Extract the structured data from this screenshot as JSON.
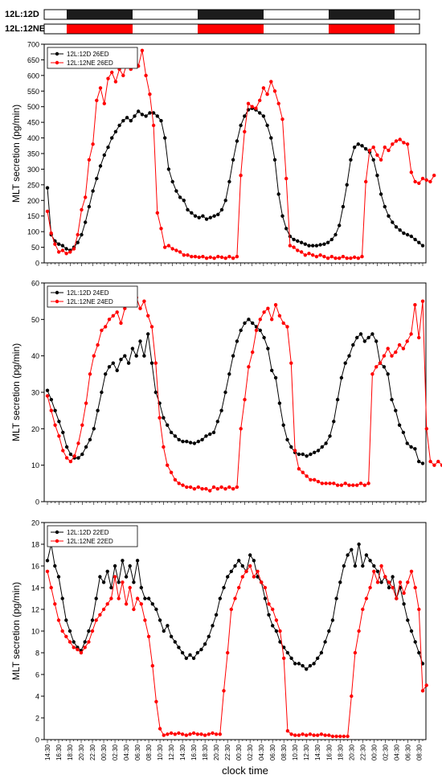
{
  "bars": [
    {
      "label": "12L:12D",
      "pattern": [
        "w",
        "b",
        "w",
        "b",
        "w",
        "b",
        "w"
      ]
    },
    {
      "label": "12L:12NE",
      "pattern": [
        "w",
        "r",
        "w",
        "r",
        "w",
        "r",
        "w"
      ]
    }
  ],
  "colors": {
    "black": "#000000",
    "red": "#ff0000",
    "bar_dark": "#1c1c1c",
    "bar_red": "#ff0000"
  },
  "xlabel": "clock time",
  "x_ticks": [
    "14:30",
    "16:30",
    "18:30",
    "20:30",
    "22:30",
    "00:30",
    "02:30",
    "04:30",
    "06:30",
    "08:30",
    "10:30",
    "12:30",
    "14:30",
    "16:30",
    "18:30",
    "20:30",
    "22:30",
    "00:30",
    "02:30",
    "04:30",
    "06:30",
    "08:30",
    "10:30",
    "12:30",
    "14:30",
    "16:30",
    "18:30",
    "20:30",
    "22:30",
    "00:30",
    "02:30",
    "04:30",
    "06:30",
    "08:30",
    "10:30"
  ],
  "chart_data": [
    {
      "type": "line",
      "ylabel": "MLT secretion (pg/min)",
      "ylim": [
        0,
        700
      ],
      "yticks": [
        0,
        50,
        100,
        150,
        200,
        250,
        300,
        350,
        400,
        450,
        500,
        550,
        600,
        650,
        700
      ],
      "legend_position": "top-left",
      "series": [
        {
          "name": "12L:12D 26ED",
          "color": "#000000",
          "values": [
            240,
            90,
            70,
            60,
            55,
            45,
            40,
            50,
            65,
            90,
            130,
            180,
            230,
            270,
            310,
            345,
            370,
            400,
            420,
            440,
            455,
            465,
            455,
            470,
            485,
            475,
            470,
            480,
            480,
            470,
            455,
            400,
            300,
            260,
            230,
            210,
            200,
            170,
            160,
            150,
            145,
            150,
            140,
            145,
            150,
            155,
            170,
            200,
            260,
            330,
            390,
            440,
            470,
            490,
            495,
            490,
            480,
            470,
            440,
            400,
            330,
            220,
            150,
            110,
            85,
            75,
            70,
            65,
            60,
            55,
            55,
            55,
            58,
            60,
            65,
            75,
            90,
            120,
            180,
            250,
            330,
            370,
            380,
            375,
            365,
            355,
            330,
            280,
            220,
            180,
            150,
            130,
            115,
            105,
            95,
            90,
            85,
            75,
            65,
            55
          ]
        },
        {
          "name": "12L:12NE 26ED",
          "color": "#ff0000",
          "values": [
            165,
            95,
            60,
            35,
            40,
            30,
            35,
            45,
            90,
            170,
            210,
            330,
            380,
            520,
            560,
            510,
            590,
            610,
            580,
            620,
            600,
            640,
            620,
            665,
            630,
            680,
            600,
            540,
            440,
            160,
            110,
            50,
            55,
            45,
            40,
            35,
            25,
            25,
            20,
            20,
            18,
            20,
            15,
            18,
            15,
            20,
            18,
            15,
            20,
            15,
            20,
            280,
            420,
            510,
            500,
            495,
            520,
            560,
            540,
            580,
            550,
            510,
            460,
            270,
            55,
            50,
            40,
            35,
            25,
            30,
            25,
            20,
            25,
            20,
            15,
            20,
            15,
            15,
            20,
            15,
            15,
            18,
            15,
            20,
            260,
            360,
            370,
            345,
            330,
            370,
            360,
            380,
            390,
            395,
            385,
            380,
            290,
            260,
            255,
            270,
            265,
            260,
            280
          ]
        }
      ]
    },
    {
      "type": "line",
      "ylabel": "MLT secretion (pg/min)",
      "ylim": [
        0,
        60
      ],
      "yticks": [
        0,
        10,
        20,
        30,
        40,
        50,
        60
      ],
      "legend_position": "top-left",
      "series": [
        {
          "name": "12L:12D 24ED",
          "color": "#000000",
          "values": [
            30.5,
            28,
            25,
            22,
            19,
            15,
            13,
            12,
            12,
            13,
            15,
            17,
            20,
            25,
            30,
            35,
            37,
            38,
            36,
            39,
            40,
            38,
            42,
            40,
            44,
            40,
            46,
            38,
            30,
            27,
            23,
            21,
            19,
            18,
            17,
            16.5,
            16.5,
            16.2,
            16,
            16.5,
            17,
            18,
            18.5,
            19,
            22,
            25,
            30,
            35,
            40,
            44,
            47,
            49,
            50,
            49,
            48,
            47,
            45,
            42,
            36,
            34,
            27,
            21,
            17,
            15,
            13.5,
            13,
            13,
            12.5,
            13,
            13.5,
            14,
            15,
            16,
            18,
            22,
            28,
            34,
            38,
            40,
            43,
            45,
            46,
            44,
            45,
            46,
            44,
            38,
            37,
            35,
            28,
            25,
            21,
            19,
            16,
            15,
            14.5,
            11,
            10.5
          ]
        },
        {
          "name": "12L:12NE 24ED",
          "color": "#ff0000",
          "values": [
            29,
            25,
            21,
            18,
            14,
            12,
            11,
            12.5,
            16,
            21,
            27,
            35,
            40,
            43,
            47,
            48,
            50,
            51,
            52,
            49,
            53,
            55,
            54,
            56,
            53,
            55,
            51,
            48,
            38,
            23,
            15,
            10,
            8,
            6,
            5,
            4.5,
            4,
            4,
            3.5,
            4,
            3.5,
            3.5,
            3,
            4,
            3.5,
            4,
            3.5,
            4,
            3.5,
            4,
            20,
            28,
            37,
            41,
            47,
            50,
            52,
            53,
            50,
            54,
            51,
            49,
            48,
            38,
            14,
            9,
            8,
            7,
            6,
            6,
            5.5,
            5,
            5,
            5,
            5,
            4.5,
            4.5,
            5,
            4.5,
            4.5,
            4.5,
            5,
            4.5,
            5,
            35,
            37,
            38,
            40,
            42,
            40,
            41,
            43,
            42,
            44,
            46,
            54,
            45,
            55,
            20,
            11,
            10,
            11,
            10,
            10.5,
            10
          ]
        }
      ]
    },
    {
      "type": "line",
      "ylabel": "MLT secretion (pg/min)",
      "ylim": [
        0,
        20
      ],
      "yticks": [
        0,
        2,
        4,
        6,
        8,
        10,
        12,
        14,
        16,
        18,
        20
      ],
      "legend_position": "top-left",
      "series": [
        {
          "name": "12L:12D 22ED",
          "color": "#000000",
          "values": [
            16.5,
            18,
            16,
            15,
            13,
            11,
            10,
            9,
            8.5,
            8.2,
            9,
            10,
            11,
            13,
            15,
            14.5,
            15.5,
            14,
            16,
            14.5,
            16.5,
            15,
            16,
            14.5,
            16.5,
            14,
            13,
            13,
            12.5,
            12,
            11,
            10,
            10.5,
            9.5,
            9,
            8.5,
            8,
            7.5,
            7.8,
            7.5,
            8,
            8.3,
            8.8,
            9.5,
            10.5,
            11.5,
            13,
            14,
            15,
            15.5,
            16,
            16.5,
            16,
            15.5,
            17,
            16.5,
            15,
            14.5,
            13,
            11.5,
            10.5,
            10,
            9,
            8.5,
            8,
            7.5,
            7,
            7,
            6.8,
            6.5,
            6.8,
            7,
            7.5,
            8,
            9,
            10,
            11,
            13,
            14.5,
            16,
            17,
            17.5,
            16,
            18,
            16,
            17,
            16.5,
            16,
            15.5,
            14.5,
            15,
            14,
            15,
            13,
            14,
            12.5,
            11,
            10,
            9,
            8,
            7
          ]
        },
        {
          "name": "12L:12NE 22ED",
          "color": "#ff0000",
          "values": [
            15.5,
            14,
            12.5,
            11,
            10,
            9.5,
            9,
            8.5,
            8.3,
            8,
            8.5,
            9,
            10,
            11,
            11.5,
            12,
            12.5,
            13,
            15,
            13,
            14.5,
            12.5,
            14,
            12,
            13,
            12.5,
            11,
            9.5,
            6.8,
            3.5,
            1,
            0.4,
            0.5,
            0.6,
            0.5,
            0.6,
            0.5,
            0.4,
            0.5,
            0.6,
            0.5,
            0.5,
            0.4,
            0.5,
            0.6,
            0.5,
            0.5,
            4.5,
            8,
            12,
            13,
            14,
            15,
            15.5,
            16,
            15,
            15.5,
            14.5,
            14,
            12.5,
            12,
            11,
            10,
            7.5,
            0.8,
            0.5,
            0.4,
            0.4,
            0.5,
            0.4,
            0.5,
            0.4,
            0.4,
            0.5,
            0.4,
            0.4,
            0.3,
            0.3,
            0.3,
            0.3,
            0.3,
            4,
            8,
            10,
            12,
            13,
            14,
            15.5,
            14.5,
            16,
            15,
            14.5,
            14,
            13,
            14.5,
            13.5,
            14.5,
            15.5,
            14,
            12,
            4.5,
            5
          ]
        }
      ]
    }
  ]
}
